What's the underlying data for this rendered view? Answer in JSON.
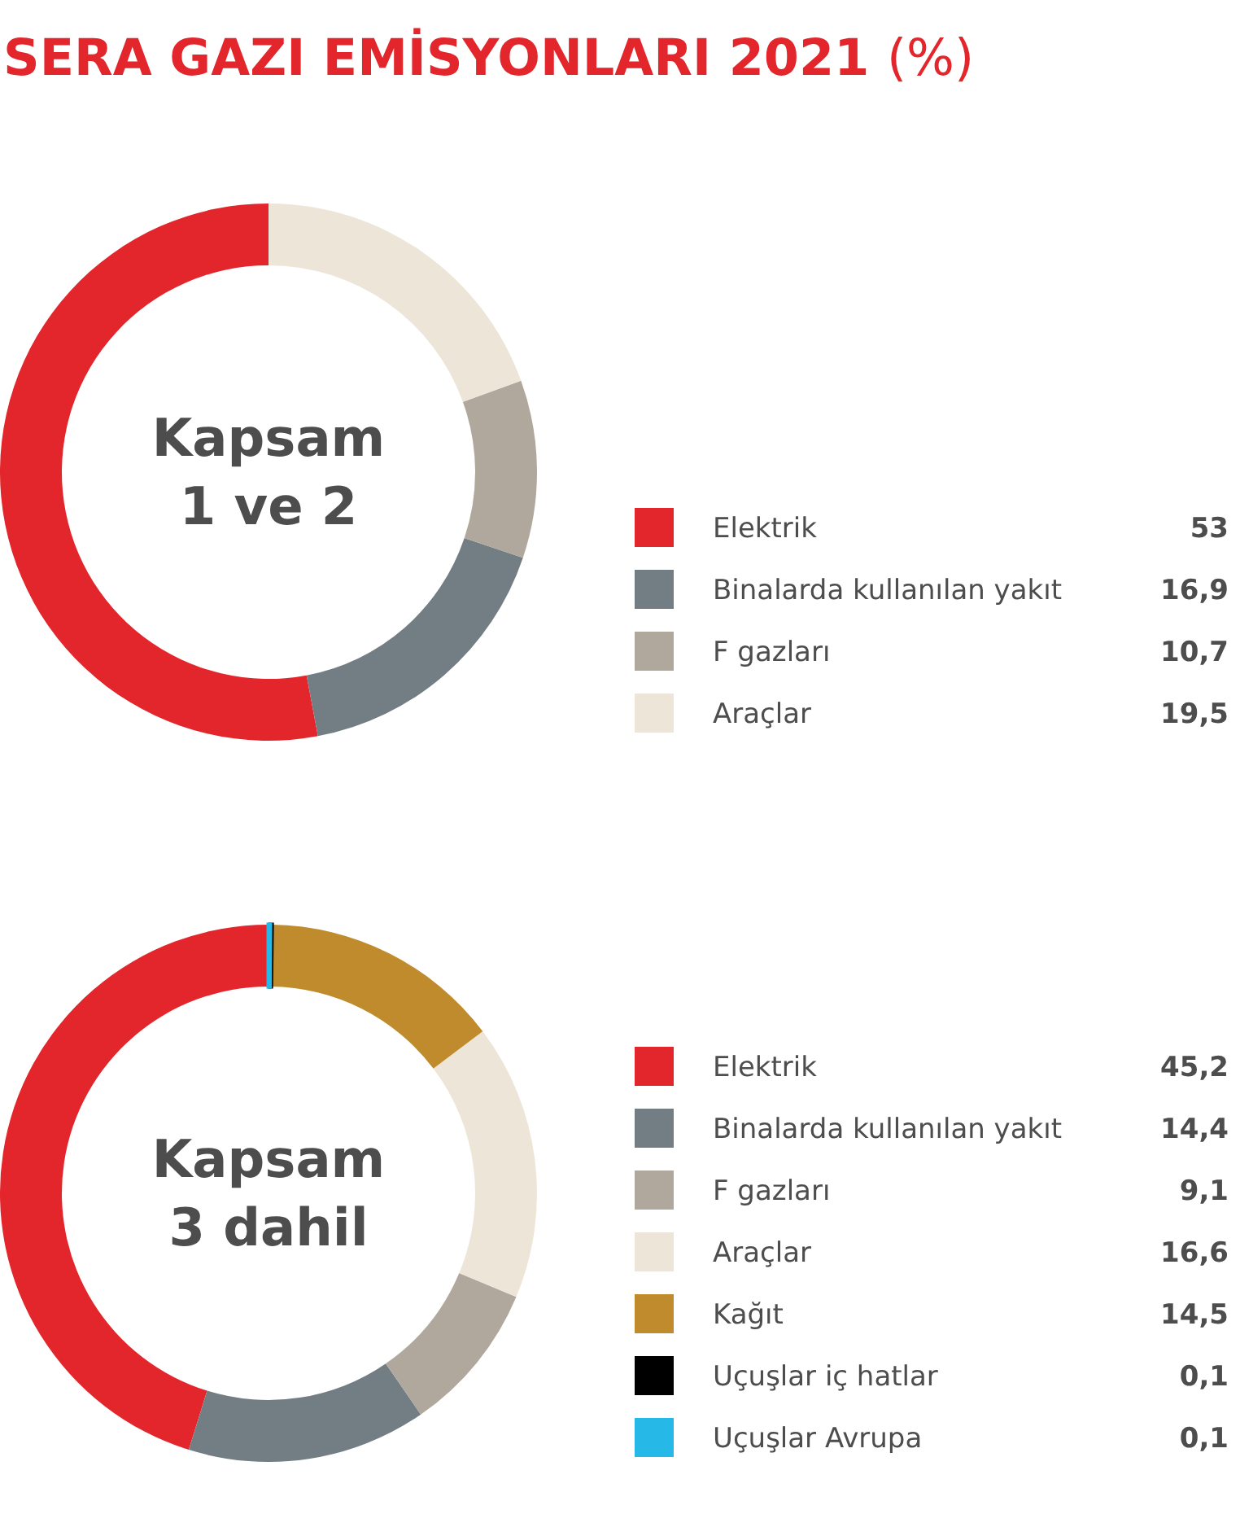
{
  "chart_data": [
    {
      "type": "donut",
      "title": "SERA GAZI EMİSYONLARI 2021 (%)",
      "annotations": [
        "Kapsam 1 ve 2"
      ],
      "legend": "right",
      "categories": [
        "Elektrik",
        "Binalarda kullanılan yakıt",
        "F gazları",
        "Araçlar"
      ],
      "values": [
        53,
        16.9,
        10.7,
        19.5
      ],
      "value_labels": [
        "53",
        "16,9",
        "10,7",
        "19,5"
      ],
      "colors": [
        "#e3262b",
        "#737e84",
        "#b0a89d",
        "#ede5d8"
      ]
    },
    {
      "type": "donut",
      "annotations": [
        "Kapsam 3 dahil"
      ],
      "legend": "right",
      "categories": [
        "Elektrik",
        "Binalarda kullanılan yakıt",
        "F gazları",
        "Araçlar",
        "Kağıt",
        "Uçuşlar iç hatlar",
        "Uçuşlar Avrupa"
      ],
      "values": [
        45.2,
        14.4,
        9.1,
        16.6,
        14.5,
        0.1,
        0.1
      ],
      "value_labels": [
        "45,2",
        "14,4",
        "9,1",
        "16,6",
        "14,5",
        "0,1",
        "0,1"
      ],
      "colors": [
        "#e3262b",
        "#737e84",
        "#b0a89d",
        "#ede5d8",
        "#bf8b2c",
        "#000000",
        "#26b8e6"
      ]
    }
  ]
}
